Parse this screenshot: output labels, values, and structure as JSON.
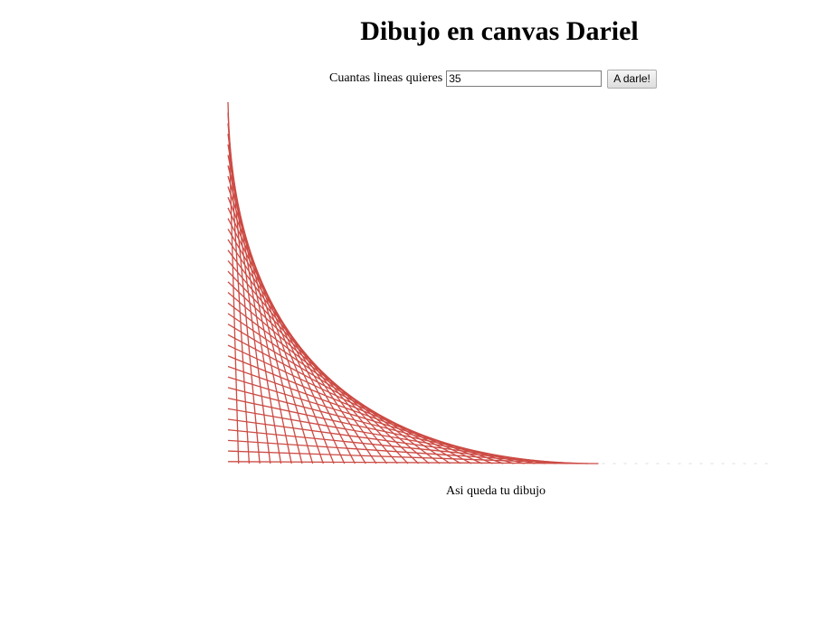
{
  "page": {
    "title": "Dibujo en canvas Dariel",
    "caption": "Asi queda tu dibujo"
  },
  "form": {
    "label": "Cuantas lineas quieres",
    "input_value": "35",
    "button_label": "A darle!"
  },
  "drawing": {
    "line_count": 35,
    "line_color": "#cc4b44",
    "background": "#ffffff"
  }
}
